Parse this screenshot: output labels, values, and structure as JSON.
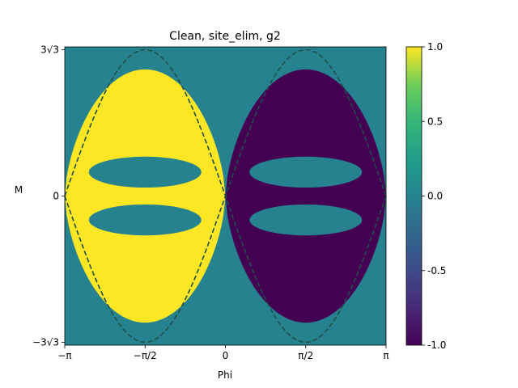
{
  "chart_data": {
    "type": "heatmap",
    "title": "Clean, site_elim, g2",
    "xlabel": "Phi",
    "ylabel": "M",
    "xlim": [
      -3.1416,
      3.1416
    ],
    "ylim": [
      -5.3,
      5.3
    ],
    "x_ticks": [
      {
        "value": -3.1416,
        "label": "−π"
      },
      {
        "value": -1.5708,
        "label": "−π/2"
      },
      {
        "value": 0,
        "label": "0"
      },
      {
        "value": 1.5708,
        "label": "π/2"
      },
      {
        "value": 3.1416,
        "label": "π"
      }
    ],
    "y_ticks": [
      {
        "value": 5.196,
        "label": "3√3"
      },
      {
        "value": 0,
        "label": "0"
      },
      {
        "value": -5.196,
        "label": "−3√3"
      }
    ],
    "colorbar": {
      "colormap": "viridis",
      "range": [
        -1.0,
        1.0
      ],
      "ticks": [
        {
          "value": 1.0,
          "label": "1.0"
        },
        {
          "value": 0.5,
          "label": "0.5"
        },
        {
          "value": 0.0,
          "label": "0.0"
        },
        {
          "value": -0.5,
          "label": "-0.5"
        },
        {
          "value": -1.0,
          "label": "-1.0"
        }
      ]
    },
    "background_value": 0.0,
    "regions": [
      {
        "value": 1.0,
        "shape": "lens",
        "x_range": [
          -3.1416,
          0
        ],
        "m_peak": 4.5,
        "holes": [
          {
            "x_center": -1.5708,
            "m_center": 0.85,
            "half_width_x": 1.1,
            "half_height_m": 0.55
          },
          {
            "x_center": -1.5708,
            "m_center": -0.85,
            "half_width_x": 1.1,
            "half_height_m": 0.55
          }
        ]
      },
      {
        "value": -1.0,
        "shape": "lens",
        "x_range": [
          0,
          3.1416
        ],
        "m_peak": 4.5,
        "holes": [
          {
            "x_center": 1.5708,
            "m_center": 0.85,
            "half_width_x": 1.1,
            "half_height_m": 0.55
          },
          {
            "x_center": 1.5708,
            "m_center": -0.85,
            "half_width_x": 1.1,
            "half_height_m": 0.55
          }
        ]
      }
    ],
    "boundary_curve": {
      "style": "dashed",
      "color": "#1f4f4a",
      "formula": "M = ±3√3 |sin(Phi)|",
      "amplitude": 5.196
    },
    "colors": {
      "high": "#fde725",
      "mid": "#21918c",
      "low": "#440154"
    }
  }
}
